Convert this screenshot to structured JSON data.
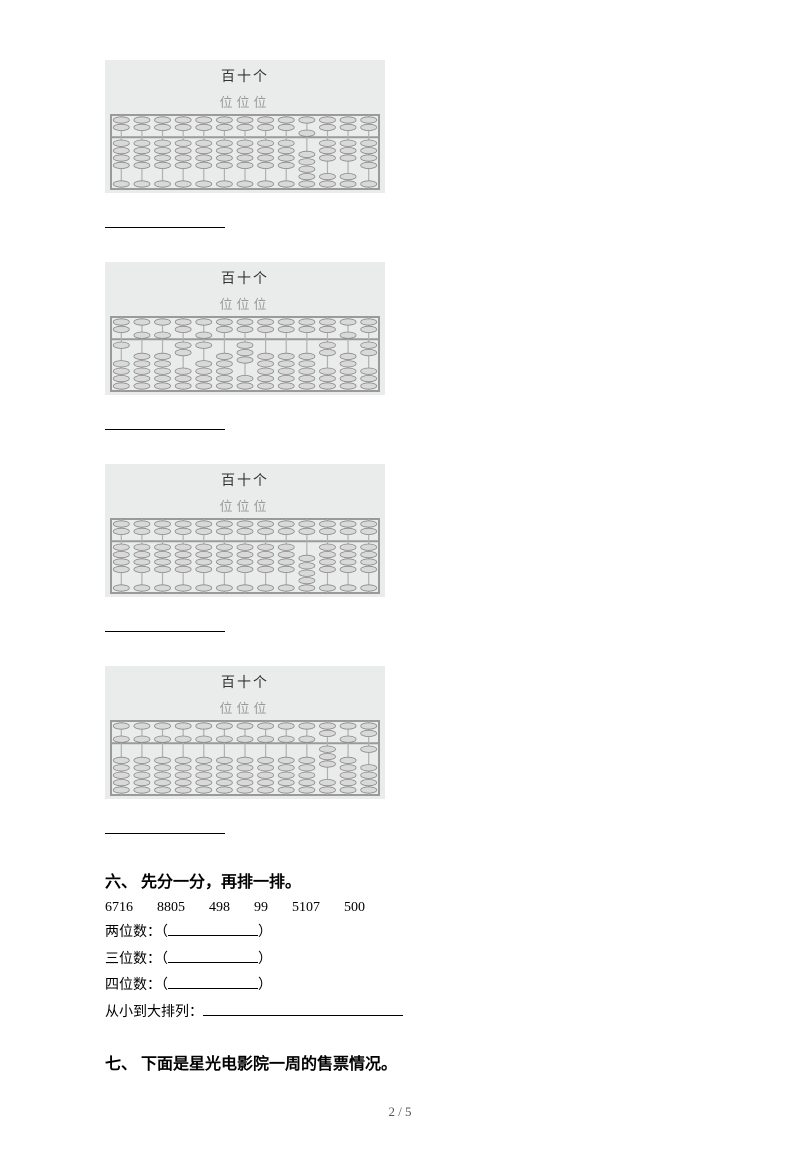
{
  "abacus_title": "百十个",
  "abacus_sub": "位位位",
  "frame_color": "#9a9a9a",
  "rod_color": "#b0b0b0",
  "bead_fill": "#d9d9d9",
  "bead_stroke": "#8a8a8a",
  "bg_color": "#eaeceb",
  "rods": 13,
  "abaci": [
    {
      "upper": [
        0,
        0,
        0,
        0,
        0,
        0,
        0,
        0,
        0,
        1,
        0,
        0,
        0
      ],
      "lower": [
        4,
        4,
        4,
        4,
        4,
        4,
        4,
        4,
        4,
        0,
        3,
        3,
        4
      ]
    },
    {
      "upper": [
        0,
        1,
        1,
        0,
        1,
        0,
        0,
        0,
        0,
        0,
        0,
        1,
        0
      ],
      "lower": [
        1,
        0,
        0,
        2,
        1,
        0,
        3,
        0,
        0,
        0,
        2,
        0,
        2
      ]
    },
    {
      "upper": [
        0,
        0,
        0,
        0,
        0,
        0,
        0,
        0,
        0,
        0,
        0,
        0,
        0
      ],
      "lower": [
        4,
        4,
        4,
        4,
        4,
        4,
        4,
        4,
        4,
        0,
        4,
        4,
        4
      ]
    },
    {
      "upper": [
        1,
        1,
        1,
        1,
        1,
        1,
        1,
        1,
        1,
        1,
        0,
        1,
        0
      ],
      "lower": [
        0,
        0,
        0,
        0,
        0,
        0,
        0,
        0,
        0,
        0,
        3,
        0,
        1
      ]
    }
  ],
  "section6": {
    "heading": "六、 先分一分，再排一排。",
    "numbers": [
      "6716",
      "8805",
      "498",
      "99",
      "5107",
      "500"
    ],
    "lines": [
      {
        "label": "两位数：（",
        "tail": "）"
      },
      {
        "label": "三位数：（",
        "tail": "）"
      },
      {
        "label": "四位数：（",
        "tail": "）"
      }
    ],
    "sort_label": "从小到大排列："
  },
  "section7": {
    "heading": "七、 下面是星光电影院一周的售票情况。"
  },
  "page_number": "2 / 5"
}
